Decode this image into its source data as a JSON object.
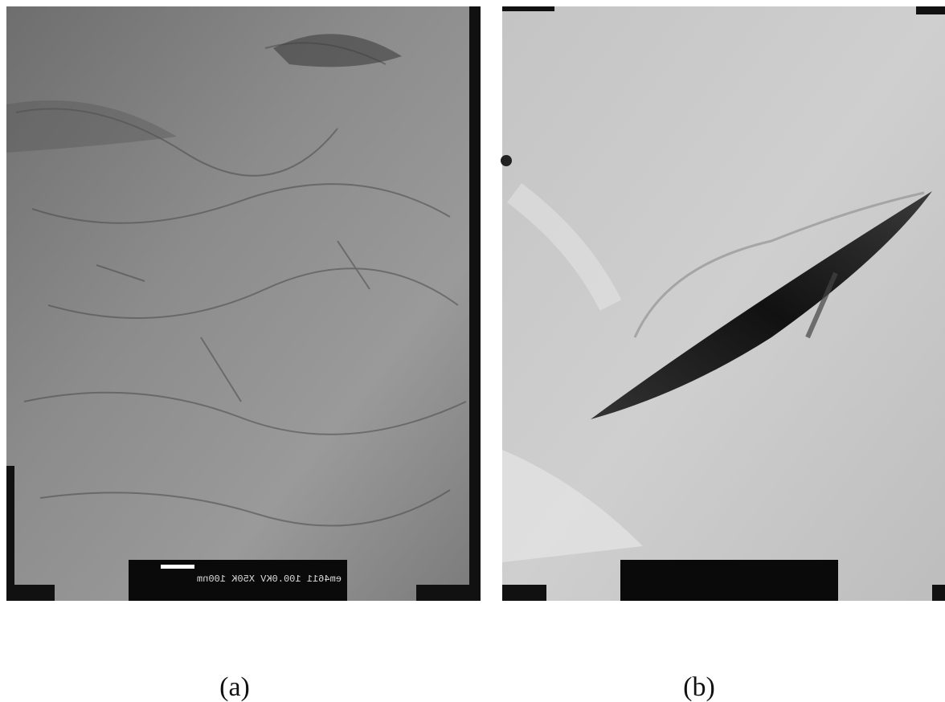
{
  "panels": [
    {
      "label": "(a)",
      "scale_text": "em4611 100.0KV X50K 100nm"
    },
    {
      "label": "(b)"
    }
  ]
}
